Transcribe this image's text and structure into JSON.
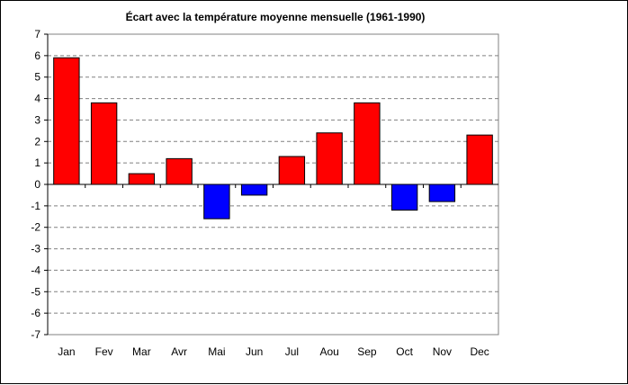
{
  "chart_data": {
    "type": "bar",
    "title": "Écart avec la température moyenne mensuelle (1961-1990)",
    "xlabel": "",
    "ylabel": "",
    "categories": [
      "Jan",
      "Fev",
      "Mar",
      "Avr",
      "Mai",
      "Jun",
      "Jul",
      "Aou",
      "Sep",
      "Oct",
      "Nov",
      "Dec"
    ],
    "values": [
      5.9,
      3.8,
      0.5,
      1.2,
      -1.6,
      -0.5,
      1.3,
      2.4,
      3.8,
      -1.2,
      -0.8,
      2.3
    ],
    "ylim": [
      -7,
      7
    ],
    "yticks": [
      "-7",
      "-6",
      "-5",
      "-4",
      "-3",
      "-2",
      "-1",
      "0",
      "1",
      "2",
      "3",
      "4",
      "5",
      "6",
      "7"
    ],
    "grid": true,
    "legend": "none",
    "colors": {
      "positive": "#ff0000",
      "negative": "#0000ff",
      "gridline": "#808080",
      "plot_border": "#808080",
      "bar_outline": "#000000"
    }
  }
}
